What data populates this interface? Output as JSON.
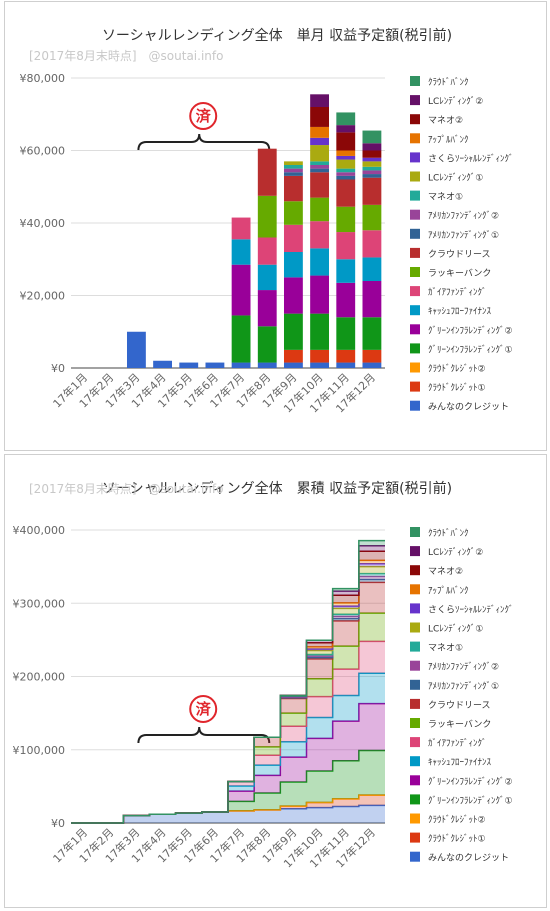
{
  "chart_data": [
    {
      "type": "bar",
      "stacked": true,
      "title": "ソーシャルレンディング全体　単月 収益予定額(税引前)",
      "subtitle": "[2017年8月末時点]　@soutai.info",
      "annotation": "済",
      "categories": [
        "17年1月",
        "17年2月",
        "17年3月",
        "17年4月",
        "17年5月",
        "17年6月",
        "17年7月",
        "17年8月",
        "17年9月",
        "17年10月",
        "17年11月",
        "17年12月"
      ],
      "y_tick_labels": [
        "¥0",
        "¥20,000",
        "¥40,000",
        "¥60,000",
        "¥80,000"
      ],
      "ylim": [
        0,
        80000
      ],
      "grid": true,
      "legend_position": "right",
      "series": [
        {
          "name": "みんなのクレジット",
          "color": "#3366cc",
          "values": [
            0,
            0,
            10000,
            2000,
            1500,
            1500,
            1500,
            1500,
            1500,
            1500,
            1500,
            1500
          ]
        },
        {
          "name": "ｸﾗｳﾄﾞｸﾚｼﾞｯﾄ①",
          "color": "#dc3912",
          "values": [
            0,
            0,
            0,
            0,
            0,
            0,
            0,
            0,
            3500,
            3500,
            3500,
            3500
          ]
        },
        {
          "name": "ｸﾗｳﾄﾞｸﾚｼﾞｯﾄ②",
          "color": "#ff9900",
          "values": [
            0,
            0,
            0,
            0,
            0,
            0,
            0,
            0,
            0,
            0,
            0,
            0
          ]
        },
        {
          "name": "ｸﾞﾘｰﾝｲﾝﾌﾗﾚﾝﾃﾞｨﾝｸﾞ①",
          "color": "#109618",
          "values": [
            0,
            0,
            0,
            0,
            0,
            0,
            13000,
            10000,
            10000,
            10000,
            9000,
            9000
          ]
        },
        {
          "name": "ｸﾞﾘｰﾝｲﾝﾌﾗﾚﾝﾃﾞｨﾝｸﾞ②",
          "color": "#990099",
          "values": [
            0,
            0,
            0,
            0,
            0,
            0,
            14000,
            10000,
            10000,
            10500,
            9500,
            10000
          ]
        },
        {
          "name": "ｷｬｯｼｭﾌﾛｰﾌｧｲﾅﾝｽ",
          "color": "#0099c6",
          "values": [
            0,
            0,
            0,
            0,
            0,
            0,
            7000,
            7000,
            7000,
            7500,
            6500,
            6500
          ]
        },
        {
          "name": "ｶﾞｲｱﾌｧﾝﾃﾞｨﾝｸﾞ",
          "color": "#dd4477",
          "values": [
            0,
            0,
            0,
            0,
            0,
            0,
            6000,
            7500,
            7500,
            7500,
            7500,
            7500
          ]
        },
        {
          "name": "ラッキーバンク",
          "color": "#66aa00",
          "values": [
            0,
            0,
            0,
            0,
            0,
            0,
            0,
            11500,
            6500,
            6500,
            7000,
            7000
          ]
        },
        {
          "name": "クラウドリース",
          "color": "#b82e2e",
          "values": [
            0,
            0,
            0,
            0,
            0,
            0,
            0,
            13000,
            7000,
            7000,
            7500,
            7500
          ]
        },
        {
          "name": "ｱﾒﾘｶﾝﾌｧﾝﾃﾞｨﾝｸﾞ①",
          "color": "#316395",
          "values": [
            0,
            0,
            0,
            0,
            0,
            0,
            0,
            0,
            1000,
            1000,
            1000,
            1000
          ]
        },
        {
          "name": "ｱﾒﾘｶﾝﾌｧﾝﾃﾞｨﾝｸﾞ②",
          "color": "#994499",
          "values": [
            0,
            0,
            0,
            0,
            0,
            0,
            0,
            0,
            1000,
            1000,
            1000,
            1000
          ]
        },
        {
          "name": "マネオ①",
          "color": "#22aa99",
          "values": [
            0,
            0,
            0,
            0,
            0,
            0,
            0,
            0,
            1000,
            1000,
            1000,
            1000
          ]
        },
        {
          "name": "LCﾚﾝﾃﾞｨﾝｸﾞ①",
          "color": "#aaaa11",
          "values": [
            0,
            0,
            0,
            0,
            0,
            0,
            0,
            0,
            1000,
            4500,
            2500,
            1500
          ]
        },
        {
          "name": "さくらｿｰｼｬﾙﾚﾝﾃﾞｨﾝｸﾞ",
          "color": "#6633cc",
          "values": [
            0,
            0,
            0,
            0,
            0,
            0,
            0,
            0,
            0,
            2000,
            1000,
            1000
          ]
        },
        {
          "name": "ｱｯﾌﾟﾙﾊﾞﾝｸ",
          "color": "#e67300",
          "values": [
            0,
            0,
            0,
            0,
            0,
            0,
            0,
            0,
            0,
            3000,
            1500,
            0
          ]
        },
        {
          "name": "マネオ②",
          "color": "#8b0707",
          "values": [
            0,
            0,
            0,
            0,
            0,
            0,
            0,
            0,
            0,
            5500,
            5000,
            2000
          ]
        },
        {
          "name": "LCﾚﾝﾃﾞｨﾝｸﾞ②",
          "color": "#651067",
          "values": [
            0,
            0,
            0,
            0,
            0,
            0,
            0,
            0,
            0,
            3500,
            2000,
            2000
          ]
        },
        {
          "name": "ｸﾗｳﾄﾞﾊﾞﾝｸ",
          "color": "#329262",
          "values": [
            0,
            0,
            0,
            0,
            0,
            0,
            0,
            0,
            0,
            0,
            3500,
            3500
          ]
        }
      ]
    },
    {
      "type": "area",
      "stacked": true,
      "title": "ソーシャルレンディング全体　累積 収益予定額(税引前)",
      "subtitle": "[2017年8月末時点]　@soutai.info",
      "annotation": "済",
      "categories": [
        "17年1月",
        "17年2月",
        "17年3月",
        "17年4月",
        "17年5月",
        "17年6月",
        "17年7月",
        "17年8月",
        "17年9月",
        "17年10月",
        "17年11月",
        "17年12月"
      ],
      "y_tick_labels": [
        "¥0",
        "¥100,000",
        "¥200,000",
        "¥300,000",
        "¥400,000"
      ],
      "ylim": [
        0,
        400000
      ],
      "grid": true,
      "legend_position": "right",
      "cumulative_of": "monthly"
    }
  ]
}
